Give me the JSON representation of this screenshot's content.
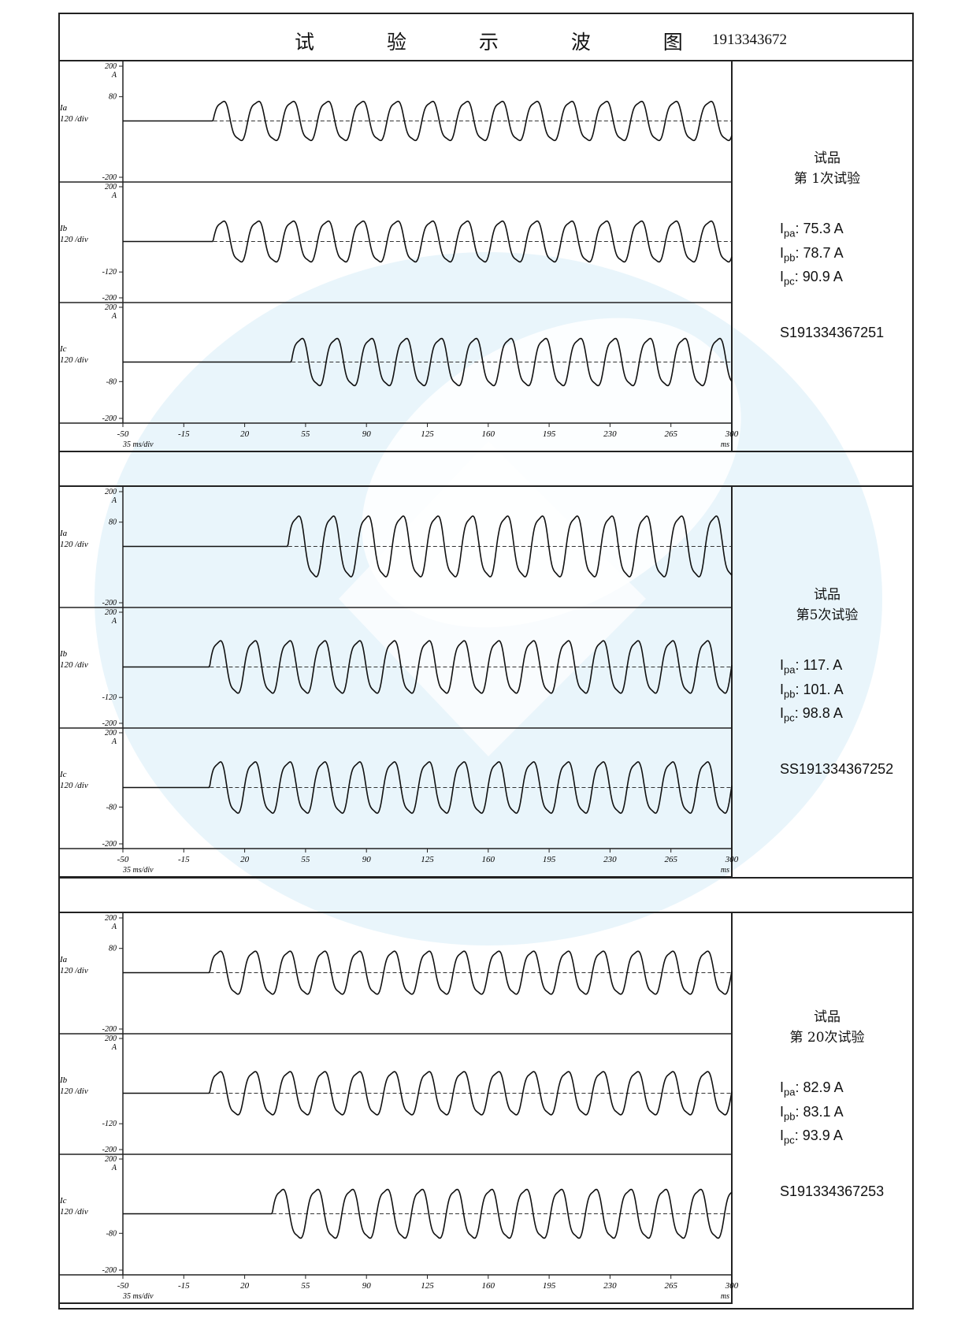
{
  "title": "试 验 示 波 图",
  "document_number": "1913343672",
  "chart_data": [
    {
      "type": "line",
      "test_label_line1": "试品",
      "test_label_line2": "第 1次试验",
      "peaks": [
        {
          "sym": "I",
          "sub": "pa",
          "value": "75.3",
          "unit": "A"
        },
        {
          "sym": "I",
          "sub": "pb",
          "value": "78.7",
          "unit": "A"
        },
        {
          "sym": "I",
          "sub": "pc",
          "value": "90.9",
          "unit": "A"
        }
      ],
      "serial": "S191334367251",
      "x_unit": "ms",
      "x_scale": "35 ms/div",
      "x_ticks": [
        "-50",
        "-15",
        "20",
        "55",
        "90",
        "125",
        "160",
        "195",
        "230",
        "265",
        "300"
      ],
      "xlim": [
        -50,
        300
      ],
      "channels": [
        {
          "name": "Ia",
          "scale": "120 /div",
          "unit": "A",
          "ticks": [
            "200",
            "80",
            "-200"
          ],
          "ylim": [
            -200,
            200
          ],
          "baseline": 0,
          "onset_ms": 2,
          "amplitude": 75.3,
          "freq_hz": 50
        },
        {
          "name": "Ib",
          "scale": "120 /div",
          "unit": "A",
          "ticks": [
            "200",
            "-120",
            "-200"
          ],
          "ylim": [
            -200,
            200
          ],
          "baseline": 0,
          "onset_ms": 2,
          "amplitude": 78.7,
          "freq_hz": 50
        },
        {
          "name": "Ic",
          "scale": "120 /div",
          "unit": "A",
          "ticks": [
            "200",
            "-80",
            "-200"
          ],
          "ylim": [
            -200,
            200
          ],
          "baseline": 0,
          "onset_ms": 47,
          "amplitude": 90.9,
          "freq_hz": 50
        }
      ]
    },
    {
      "type": "line",
      "test_label_line1": "试品",
      "test_label_line2": "第5次试验",
      "peaks": [
        {
          "sym": "I",
          "sub": "pa",
          "value": "117.",
          "unit": "A"
        },
        {
          "sym": "I",
          "sub": "pb",
          "value": "101.",
          "unit": "A"
        },
        {
          "sym": "I",
          "sub": "pc",
          "value": "98.8",
          "unit": "A"
        }
      ],
      "serial": "SS191334367252",
      "x_unit": "ms",
      "x_scale": "35 ms/div",
      "x_ticks": [
        "-50",
        "-15",
        "20",
        "55",
        "90",
        "125",
        "160",
        "195",
        "230",
        "265",
        "300"
      ],
      "xlim": [
        -50,
        300
      ],
      "channels": [
        {
          "name": "Ia",
          "scale": "120 /div",
          "unit": "A",
          "ticks": [
            "200",
            "80",
            "-200"
          ],
          "ylim": [
            -200,
            200
          ],
          "baseline": 0,
          "onset_ms": 45,
          "amplitude": 117,
          "freq_hz": 50
        },
        {
          "name": "Ib",
          "scale": "120 /div",
          "unit": "A",
          "ticks": [
            "200",
            "-120",
            "-200"
          ],
          "ylim": [
            -200,
            200
          ],
          "baseline": 0,
          "onset_ms": 0,
          "amplitude": 101,
          "freq_hz": 50
        },
        {
          "name": "Ic",
          "scale": "120 /div",
          "unit": "A",
          "ticks": [
            "200",
            "-80",
            "-200"
          ],
          "ylim": [
            -200,
            200
          ],
          "baseline": 0,
          "onset_ms": 0,
          "amplitude": 98.8,
          "freq_hz": 50
        }
      ]
    },
    {
      "type": "line",
      "test_label_line1": "试品",
      "test_label_line2": "第 20次试验",
      "peaks": [
        {
          "sym": "I",
          "sub": "pa",
          "value": "82.9",
          "unit": "A"
        },
        {
          "sym": "I",
          "sub": "pb",
          "value": "83.1",
          "unit": "A"
        },
        {
          "sym": "I",
          "sub": "pc",
          "value": "93.9",
          "unit": "A"
        }
      ],
      "serial": "S191334367253",
      "x_unit": "ms",
      "x_scale": "35 ms/div",
      "x_ticks": [
        "-50",
        "-15",
        "20",
        "55",
        "90",
        "125",
        "160",
        "195",
        "230",
        "265",
        "300"
      ],
      "xlim": [
        -50,
        300
      ],
      "channels": [
        {
          "name": "Ia",
          "scale": "120 /div",
          "unit": "A",
          "ticks": [
            "200",
            "80",
            "-200"
          ],
          "ylim": [
            -200,
            200
          ],
          "baseline": 0,
          "onset_ms": 0,
          "amplitude": 82.9,
          "freq_hz": 50
        },
        {
          "name": "Ib",
          "scale": "120 /div",
          "unit": "A",
          "ticks": [
            "200",
            "-120",
            "-200"
          ],
          "ylim": [
            -200,
            200
          ],
          "baseline": 0,
          "onset_ms": 0,
          "amplitude": 83.1,
          "freq_hz": 50
        },
        {
          "name": "Ic",
          "scale": "120 /div",
          "unit": "A",
          "ticks": [
            "200",
            "-80",
            "-200"
          ],
          "ylim": [
            -200,
            200
          ],
          "baseline": 0,
          "onset_ms": 36,
          "amplitude": 93.9,
          "freq_hz": 50
        }
      ]
    }
  ]
}
